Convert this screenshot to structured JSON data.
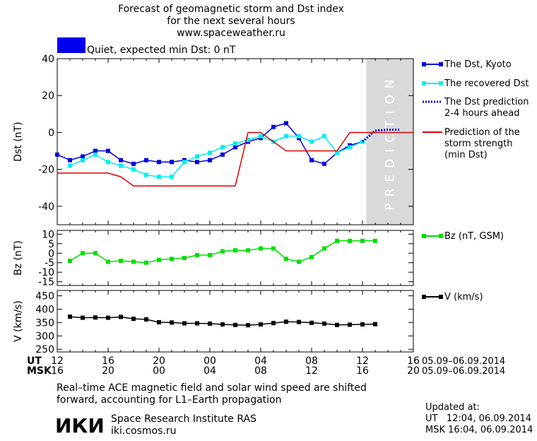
{
  "header": {
    "title_lines": [
      "Forecast of geomagnetic storm and Dst index",
      "for the next several hours",
      "www.spaceweather.ru"
    ],
    "status_text": "Quiet, expected min Dst: 0 nT",
    "status_color": "#0000ee"
  },
  "prediction_label": "PREDICTION",
  "chart_data": [
    {
      "type": "line",
      "panel": "dst",
      "ylabel": "Dst (nT)",
      "ylim": [
        -50,
        40
      ],
      "yticks": [
        40,
        20,
        0,
        -20,
        -40
      ],
      "x_unit": "hours since 12 UT 05.09.2014",
      "xlim": [
        0,
        28
      ],
      "prediction_zone": [
        24.3,
        28
      ],
      "series": [
        {
          "name": "The Dst, Kyoto",
          "color": "#0000dd",
          "marker": "square",
          "style": "solid",
          "x": [
            0,
            1,
            2,
            3,
            4,
            5,
            6,
            7,
            8,
            9,
            10,
            11,
            12,
            13,
            14,
            15,
            16,
            17,
            18,
            19,
            20,
            21,
            22,
            23,
            24
          ],
          "y": [
            -12,
            -15,
            -13,
            -10,
            -10,
            -15,
            -17,
            -15,
            -16,
            -16,
            -15,
            -16,
            -15,
            -12,
            -8,
            -5,
            -3,
            3,
            5,
            -3,
            -15,
            -17,
            -11,
            -7,
            -5
          ]
        },
        {
          "name": "The recovered Dst",
          "color": "#00eeee",
          "marker": "square",
          "style": "solid",
          "x": [
            1,
            2,
            3,
            4,
            5,
            6,
            7,
            8,
            9,
            10,
            11,
            12,
            13,
            14,
            15,
            16,
            17,
            18,
            19,
            20,
            21,
            22,
            23,
            24
          ],
          "y": [
            -18,
            -15,
            -12,
            -16,
            -18,
            -20,
            -23,
            -24,
            -24,
            -16,
            -13,
            -11,
            -8,
            -6,
            -4,
            -2,
            -5,
            -2,
            -2,
            -5,
            -2,
            -11,
            -8,
            -5
          ]
        },
        {
          "name": "The Dst prediction 2-4 hours ahead",
          "legend_lines": [
            "The Dst prediction",
            "2-4 hours ahead"
          ],
          "color": "#0000dd",
          "marker": "none",
          "style": "dotted",
          "x": [
            24,
            24.5,
            25,
            26,
            27
          ],
          "y": [
            -5,
            -2,
            1,
            1.5,
            1.5
          ]
        },
        {
          "name": "Prediction of the storm strength (min Dst)",
          "legend_lines": [
            "Prediction of the",
            "storm strength",
            "(min Dst)"
          ],
          "color": "#dd0000",
          "marker": "none",
          "style": "solid",
          "step": true,
          "x": [
            0,
            4,
            5,
            6,
            7,
            8,
            9,
            10,
            11,
            12,
            13,
            14,
            15,
            16,
            17,
            18,
            19,
            20,
            21,
            22,
            23,
            24,
            25,
            26,
            27,
            28
          ],
          "y": [
            -22,
            -22,
            -24,
            -29,
            -29,
            -29,
            -29,
            -29,
            -29,
            -29,
            -29,
            -29,
            0,
            0,
            -5,
            -10,
            -10,
            -10,
            -10,
            -10,
            0,
            0,
            0,
            0,
            0,
            0
          ]
        }
      ]
    },
    {
      "type": "line",
      "panel": "bz",
      "ylabel": "Bz (nT)",
      "ylim": [
        -17,
        12
      ],
      "yticks": [
        10,
        5,
        0,
        -5,
        -10,
        -15
      ],
      "series": [
        {
          "name": "Bz (nT, GSM)",
          "color": "#00dd00",
          "marker": "square",
          "style": "solid",
          "x": [
            1,
            2,
            3,
            4,
            5,
            6,
            7,
            8,
            9,
            10,
            11,
            12,
            13,
            14,
            15,
            16,
            17,
            18,
            19,
            20,
            21,
            22,
            23,
            24,
            25
          ],
          "y": [
            -4,
            0,
            0,
            -4.5,
            -4,
            -4.5,
            -5,
            -3.5,
            -3,
            -2.5,
            -1,
            -1,
            1,
            1.5,
            1.5,
            2.5,
            2.5,
            -3,
            -4.5,
            -2,
            2.5,
            6.5,
            6.5,
            6.5,
            6.5
          ]
        }
      ]
    },
    {
      "type": "line",
      "panel": "v",
      "ylabel": "V (km/s)",
      "ylim": [
        240,
        470
      ],
      "yticks": [
        450,
        400,
        350,
        300,
        250
      ],
      "series": [
        {
          "name": "V (km/s)",
          "color": "#000000",
          "marker": "square",
          "style": "solid",
          "x": [
            1,
            2,
            3,
            4,
            5,
            6,
            7,
            8,
            9,
            10,
            11,
            12,
            13,
            14,
            15,
            16,
            17,
            18,
            19,
            20,
            21,
            22,
            23,
            24,
            25
          ],
          "y": [
            372,
            368,
            369,
            368,
            371,
            364,
            362,
            351,
            350,
            347,
            347,
            346,
            343,
            341,
            340,
            343,
            348,
            353,
            352,
            349,
            346,
            341,
            342,
            343,
            344
          ]
        }
      ]
    }
  ],
  "x_axis": {
    "ut_label": "UT",
    "msk_label": "MSK",
    "ut_ticks": [
      "12",
      "16",
      "20",
      "00",
      "04",
      "08",
      "12",
      "16"
    ],
    "msk_ticks": [
      "16",
      "20",
      "00",
      "04",
      "08",
      "12",
      "16",
      "20"
    ],
    "ut_range": "05.09–06.09.2014",
    "msk_range": "05.09–06.09.2014"
  },
  "footer": {
    "note_lines": [
      "Real–time ACE magnetic field and solar wind speed are shifted",
      "forward, accounting for L1–Earth propagation"
    ],
    "logo_text": "ИКИ",
    "institute": "Space Research Institute RAS",
    "website": "iki.cosmos.ru",
    "updated_label": "Updated at:",
    "updated_ut": "UT   12:04, 06.09.2014",
    "updated_msk": "MSK 16:04, 06.09.2014"
  }
}
